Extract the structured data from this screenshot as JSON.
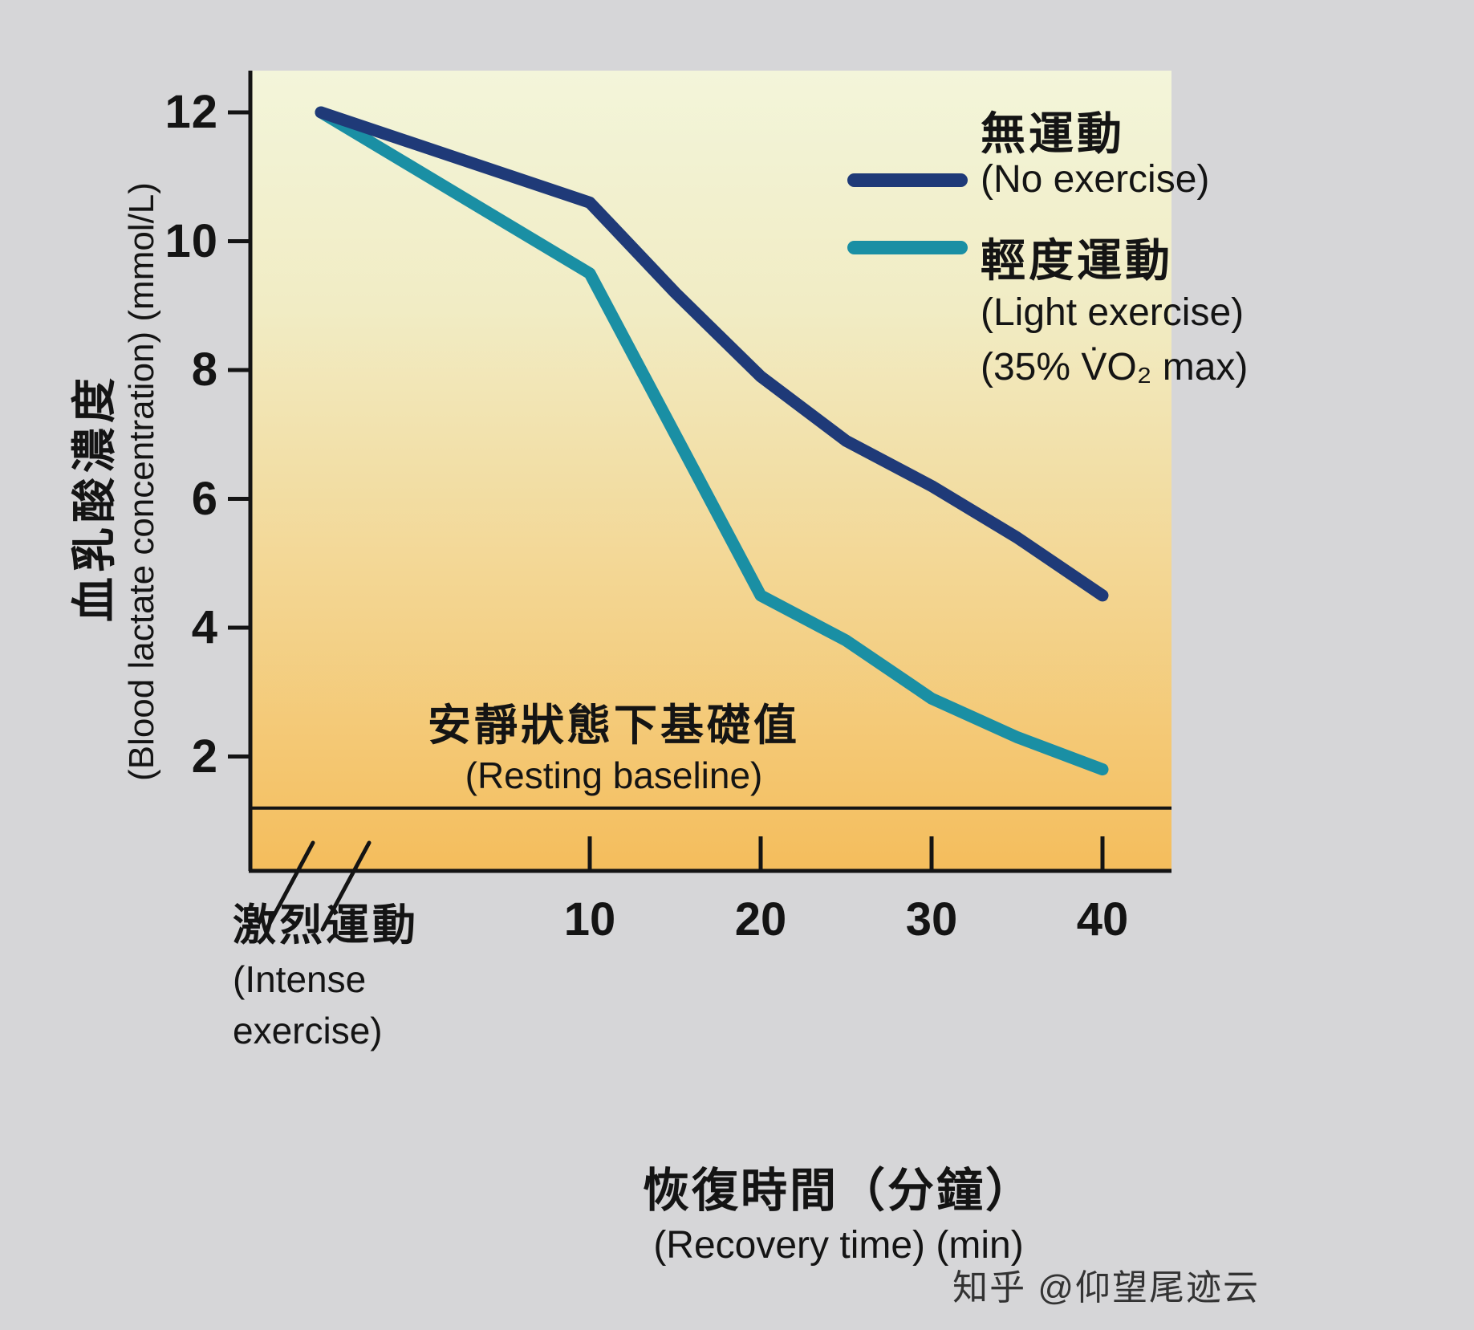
{
  "chart_data": {
    "type": "line",
    "x_axis_title_zh": "恢復時間（分鐘）",
    "x_axis_title_en": "(Recovery time) (min)",
    "y_axis_title_zh": "血乳酸濃度",
    "y_axis_title_en": "(Blood lactate concentration) (mmol/L)",
    "x": [
      0,
      10,
      15,
      20,
      25,
      30,
      35,
      40
    ],
    "x_ticks": [
      10,
      20,
      30,
      40
    ],
    "y_ticks": [
      12,
      10,
      8,
      6,
      4,
      2
    ],
    "ylim": [
      0,
      12.6
    ],
    "axis_color": "#141414",
    "series": [
      {
        "name_zh": "無運動",
        "name_en": "(No exercise)",
        "color": "#1f3a78",
        "values": [
          12,
          10.6,
          9.2,
          7.9,
          6.9,
          6.2,
          5.4,
          4.5
        ]
      },
      {
        "name_zh": "輕度運動",
        "name_en": "(Light exercise)",
        "name_sub": "(35% V̇O₂ max)",
        "color": "#1a8fa4",
        "values": [
          12,
          9.5,
          7.0,
          4.5,
          3.8,
          2.9,
          2.3,
          1.8
        ]
      }
    ],
    "baseline": {
      "value": 1.2,
      "label_zh": "安靜狀態下基礎值",
      "label_en": "(Resting baseline)"
    },
    "origin_break_label_zh": "激烈運動",
    "origin_break_label_en1": "(Intense",
    "origin_break_label_en2": "exercise)"
  },
  "watermark": "知乎 @仰望尾迹云"
}
